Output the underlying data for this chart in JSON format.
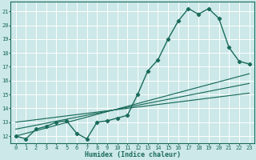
{
  "title": "",
  "xlabel": "Humidex (Indice chaleur)",
  "bg_color": "#cce8e8",
  "line_color": "#1a6b5a",
  "grid_color": "#ffffff",
  "xlim": [
    -0.5,
    23.5
  ],
  "ylim": [
    11.5,
    21.7
  ],
  "xticks": [
    0,
    1,
    2,
    3,
    4,
    5,
    6,
    7,
    8,
    9,
    10,
    11,
    12,
    13,
    14,
    15,
    16,
    17,
    18,
    19,
    20,
    21,
    22,
    23
  ],
  "yticks": [
    12,
    13,
    14,
    15,
    16,
    17,
    18,
    19,
    20,
    21
  ],
  "series_main": {
    "x": [
      0,
      1,
      2,
      3,
      4,
      5,
      6,
      7,
      8,
      9,
      10,
      11,
      12,
      13,
      14,
      15,
      16,
      17,
      18,
      19,
      20,
      21,
      22,
      23
    ],
    "y": [
      12.0,
      11.8,
      12.5,
      12.7,
      13.0,
      13.1,
      12.2,
      11.8,
      13.0,
      13.1,
      13.3,
      13.5,
      15.0,
      16.7,
      17.5,
      19.0,
      20.3,
      21.2,
      20.8,
      21.2,
      20.5,
      18.4,
      17.4,
      17.2
    ]
  },
  "series_lines": [
    {
      "x0": 0,
      "y0": 12.0,
      "x1": 23,
      "y1": 16.5
    },
    {
      "x0": 0,
      "y0": 12.5,
      "x1": 23,
      "y1": 15.8
    },
    {
      "x0": 0,
      "y0": 13.0,
      "x1": 23,
      "y1": 15.1
    }
  ],
  "marker": "D",
  "markersize": 2.2,
  "linewidth": 1.0,
  "tick_fontsize": 5,
  "xlabel_fontsize": 6
}
